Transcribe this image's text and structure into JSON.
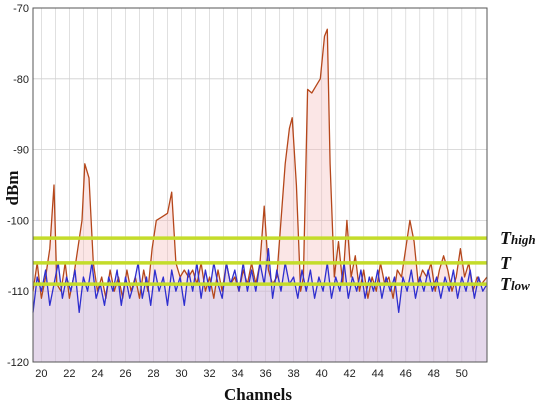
{
  "chart_data": {
    "type": "line",
    "title": "",
    "xlabel": "Channels",
    "ylabel": "dBm",
    "xlim": [
      19.4,
      51.8
    ],
    "ylim": [
      -120,
      -70
    ],
    "xticks": [
      20,
      22,
      24,
      26,
      28,
      30,
      32,
      34,
      36,
      38,
      40,
      42,
      44,
      46,
      48,
      50
    ],
    "yticks": [
      -70,
      -80,
      -90,
      -100,
      -110,
      -120
    ],
    "grid": true,
    "colors": {
      "brown": "#b5471b",
      "brown_fill": "#f4b6b6",
      "blue": "#2f2fcf",
      "blue_fill": "#b9b9f2",
      "threshold": "#c4dc2a"
    },
    "series": [
      {
        "color": "brown",
        "points": [
          [
            19.4,
            -110
          ],
          [
            19.7,
            -106
          ],
          [
            20.0,
            -111
          ],
          [
            20.3,
            -108
          ],
          [
            20.6,
            -104
          ],
          [
            20.9,
            -95
          ],
          [
            21.1,
            -109
          ],
          [
            21.4,
            -110
          ],
          [
            21.7,
            -106
          ],
          [
            22.0,
            -111
          ],
          [
            22.3,
            -108
          ],
          [
            22.6,
            -104
          ],
          [
            22.9,
            -100
          ],
          [
            23.1,
            -92
          ],
          [
            23.4,
            -94
          ],
          [
            23.7,
            -106
          ],
          [
            24.0,
            -110
          ],
          [
            24.3,
            -108
          ],
          [
            24.6,
            -111
          ],
          [
            24.9,
            -107
          ],
          [
            25.2,
            -110
          ],
          [
            25.5,
            -108
          ],
          [
            25.8,
            -111
          ],
          [
            26.1,
            -107
          ],
          [
            26.4,
            -110
          ],
          [
            26.7,
            -108
          ],
          [
            27.0,
            -111
          ],
          [
            27.3,
            -107
          ],
          [
            27.6,
            -110
          ],
          [
            27.9,
            -104
          ],
          [
            28.2,
            -100
          ],
          [
            28.6,
            -99.5
          ],
          [
            29.0,
            -99
          ],
          [
            29.3,
            -96
          ],
          [
            29.6,
            -106
          ],
          [
            29.9,
            -108
          ],
          [
            30.2,
            -107
          ],
          [
            30.5,
            -108
          ],
          [
            30.8,
            -107
          ],
          [
            31.1,
            -109
          ],
          [
            31.4,
            -106
          ],
          [
            31.7,
            -110
          ],
          [
            32.0,
            -108
          ],
          [
            32.3,
            -111
          ],
          [
            32.6,
            -107
          ],
          [
            32.9,
            -110
          ],
          [
            33.2,
            -106
          ],
          [
            33.5,
            -109
          ],
          [
            33.8,
            -108
          ],
          [
            34.1,
            -110
          ],
          [
            34.4,
            -107
          ],
          [
            34.7,
            -109
          ],
          [
            35.0,
            -106
          ],
          [
            35.3,
            -109
          ],
          [
            35.6,
            -106
          ],
          [
            35.9,
            -98
          ],
          [
            36.2,
            -107
          ],
          [
            36.5,
            -109
          ],
          [
            36.8,
            -108
          ],
          [
            37.1,
            -100
          ],
          [
            37.4,
            -92
          ],
          [
            37.7,
            -87
          ],
          [
            37.9,
            -85.5
          ],
          [
            38.2,
            -95
          ],
          [
            38.5,
            -110
          ],
          [
            38.7,
            -108
          ],
          [
            39.0,
            -81.5
          ],
          [
            39.3,
            -82
          ],
          [
            39.6,
            -81
          ],
          [
            39.9,
            -80
          ],
          [
            40.2,
            -74
          ],
          [
            40.4,
            -73
          ],
          [
            40.6,
            -92
          ],
          [
            40.9,
            -108
          ],
          [
            41.2,
            -103
          ],
          [
            41.5,
            -109
          ],
          [
            41.8,
            -100
          ],
          [
            42.1,
            -108
          ],
          [
            42.4,
            -105
          ],
          [
            42.7,
            -110
          ],
          [
            43.0,
            -107
          ],
          [
            43.3,
            -111
          ],
          [
            43.6,
            -108
          ],
          [
            43.9,
            -110
          ],
          [
            44.2,
            -106
          ],
          [
            44.5,
            -109
          ],
          [
            44.8,
            -108
          ],
          [
            45.1,
            -111
          ],
          [
            45.4,
            -107
          ],
          [
            45.7,
            -108
          ],
          [
            46.0,
            -104
          ],
          [
            46.3,
            -100
          ],
          [
            46.6,
            -103
          ],
          [
            46.9,
            -109
          ],
          [
            47.2,
            -107
          ],
          [
            47.5,
            -108
          ],
          [
            47.8,
            -106
          ],
          [
            48.1,
            -110
          ],
          [
            48.4,
            -107
          ],
          [
            48.7,
            -105
          ],
          [
            49.0,
            -107
          ],
          [
            49.3,
            -110
          ],
          [
            49.6,
            -108
          ],
          [
            49.9,
            -104
          ],
          [
            50.2,
            -108
          ],
          [
            50.5,
            -106
          ],
          [
            50.8,
            -110
          ],
          [
            51.1,
            -108
          ],
          [
            51.4,
            -109
          ],
          [
            51.8,
            -108
          ]
        ]
      },
      {
        "color": "blue",
        "points": [
          [
            19.4,
            -113
          ],
          [
            19.7,
            -108
          ],
          [
            20.0,
            -110
          ],
          [
            20.3,
            -107
          ],
          [
            20.6,
            -112
          ],
          [
            20.9,
            -109
          ],
          [
            21.2,
            -106
          ],
          [
            21.5,
            -111
          ],
          [
            21.8,
            -108
          ],
          [
            22.1,
            -110
          ],
          [
            22.4,
            -107
          ],
          [
            22.7,
            -113
          ],
          [
            23.0,
            -108
          ],
          [
            23.3,
            -110
          ],
          [
            23.6,
            -106
          ],
          [
            23.9,
            -111
          ],
          [
            24.2,
            -109
          ],
          [
            24.5,
            -112
          ],
          [
            24.8,
            -108
          ],
          [
            25.1,
            -110
          ],
          [
            25.4,
            -107
          ],
          [
            25.7,
            -112
          ],
          [
            26.0,
            -108
          ],
          [
            26.3,
            -111
          ],
          [
            26.6,
            -109
          ],
          [
            26.9,
            -106
          ],
          [
            27.2,
            -111
          ],
          [
            27.5,
            -108
          ],
          [
            27.8,
            -112
          ],
          [
            28.1,
            -107
          ],
          [
            28.4,
            -110
          ],
          [
            28.7,
            -108
          ],
          [
            29.0,
            -112
          ],
          [
            29.3,
            -107
          ],
          [
            29.6,
            -110
          ],
          [
            29.9,
            -108
          ],
          [
            30.2,
            -112
          ],
          [
            30.5,
            -107
          ],
          [
            30.8,
            -110
          ],
          [
            31.1,
            -106
          ],
          [
            31.4,
            -111
          ],
          [
            31.7,
            -107
          ],
          [
            32.0,
            -110
          ],
          [
            32.3,
            -106
          ],
          [
            32.6,
            -109
          ],
          [
            32.9,
            -111
          ],
          [
            33.2,
            -106
          ],
          [
            33.5,
            -109
          ],
          [
            33.8,
            -107
          ],
          [
            34.1,
            -110
          ],
          [
            34.4,
            -106
          ],
          [
            34.7,
            -110
          ],
          [
            35.0,
            -107
          ],
          [
            35.3,
            -110
          ],
          [
            35.6,
            -106
          ],
          [
            35.9,
            -109
          ],
          [
            36.2,
            -104
          ],
          [
            36.5,
            -111
          ],
          [
            36.8,
            -107
          ],
          [
            37.1,
            -110
          ],
          [
            37.4,
            -106
          ],
          [
            37.7,
            -109
          ],
          [
            38.0,
            -108
          ],
          [
            38.3,
            -111
          ],
          [
            38.6,
            -107
          ],
          [
            38.9,
            -110
          ],
          [
            39.2,
            -107
          ],
          [
            39.5,
            -111
          ],
          [
            39.8,
            -108
          ],
          [
            40.1,
            -110
          ],
          [
            40.4,
            -106
          ],
          [
            40.7,
            -111
          ],
          [
            41.0,
            -108
          ],
          [
            41.3,
            -110
          ],
          [
            41.6,
            -106
          ],
          [
            41.9,
            -111
          ],
          [
            42.2,
            -108
          ],
          [
            42.5,
            -110
          ],
          [
            42.8,
            -107
          ],
          [
            43.1,
            -111
          ],
          [
            43.4,
            -108
          ],
          [
            43.7,
            -110
          ],
          [
            44.0,
            -107
          ],
          [
            44.3,
            -111
          ],
          [
            44.6,
            -108
          ],
          [
            44.9,
            -110
          ],
          [
            45.2,
            -108
          ],
          [
            45.5,
            -113
          ],
          [
            45.8,
            -108
          ],
          [
            46.1,
            -110
          ],
          [
            46.4,
            -107
          ],
          [
            46.7,
            -111
          ],
          [
            47.0,
            -108
          ],
          [
            47.3,
            -110
          ],
          [
            47.6,
            -107
          ],
          [
            47.9,
            -110
          ],
          [
            48.2,
            -108
          ],
          [
            48.5,
            -111
          ],
          [
            48.8,
            -108
          ],
          [
            49.1,
            -110
          ],
          [
            49.4,
            -107
          ],
          [
            49.7,
            -111
          ],
          [
            50.0,
            -108
          ],
          [
            50.3,
            -110
          ],
          [
            50.6,
            -107
          ],
          [
            50.9,
            -111
          ],
          [
            51.2,
            -108
          ],
          [
            51.5,
            -110
          ],
          [
            51.8,
            -109
          ]
        ]
      }
    ],
    "thresholds": [
      {
        "name": "high",
        "value": -102.5,
        "label_main": "T",
        "label_sub": "high"
      },
      {
        "name": "mid",
        "value": -106,
        "label_main": "T",
        "label_sub": ""
      },
      {
        "name": "low",
        "value": -109,
        "label_main": "T",
        "label_sub": "low"
      }
    ]
  }
}
